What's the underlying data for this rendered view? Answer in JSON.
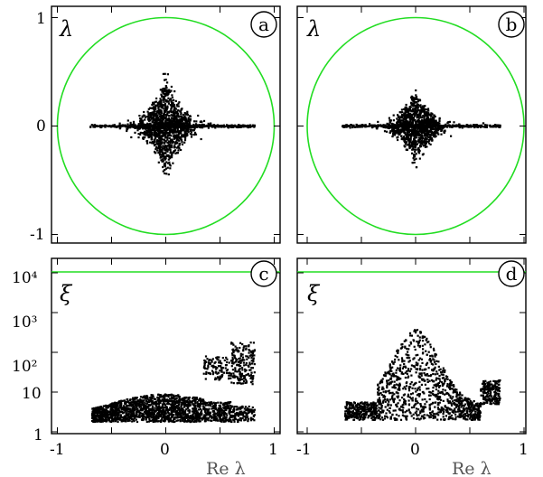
{
  "chart_data": [
    {
      "panel": "a",
      "type": "scatter",
      "ylabel": "λ",
      "xlim": [
        -1,
        1
      ],
      "ylim": [
        -1,
        1
      ],
      "yticks": [
        "1",
        "0",
        "-1"
      ],
      "overlay": {
        "type": "unit-circle",
        "color": "#22dd22"
      },
      "cloud": {
        "x_range": [
          -0.7,
          0.82
        ],
        "y_extent": 0.65,
        "count": 1700,
        "shape": "star"
      }
    },
    {
      "panel": "b",
      "type": "scatter",
      "ylabel": "λ",
      "xlim": [
        -1,
        1
      ],
      "ylim": [
        -1,
        1
      ],
      "overlay": {
        "type": "unit-circle",
        "color": "#22dd22"
      },
      "cloud": {
        "x_range": [
          -0.68,
          0.78
        ],
        "y_extent": 0.5,
        "count": 1700,
        "shape": "star"
      }
    },
    {
      "panel": "c",
      "type": "scatter",
      "ylabel": "ξ",
      "xlabel": "Re λ",
      "xlim": [
        -1,
        1
      ],
      "yscale": "log",
      "ylim": [
        1,
        12000
      ],
      "yticks": [
        "1",
        "10",
        "10²",
        "10³",
        "10⁴"
      ],
      "xticks": [
        "-1",
        "0",
        "1"
      ],
      "hline": {
        "y": 8000,
        "color": "#22dd22"
      },
      "cloud": {
        "x_range": [
          -0.68,
          0.82
        ],
        "y_range": [
          1.8,
          200
        ],
        "count": 2200
      }
    },
    {
      "panel": "d",
      "type": "scatter",
      "ylabel": "ξ",
      "xlabel": "Re λ",
      "xlim": [
        -1,
        1
      ],
      "yscale": "log",
      "ylim": [
        1,
        12000
      ],
      "xticks": [
        "-1",
        "0",
        "1"
      ],
      "hline": {
        "y": 8000,
        "color": "#22dd22"
      },
      "cloud": {
        "x_range": [
          -0.65,
          0.78
        ],
        "y_range": [
          2,
          140
        ],
        "count": 1500
      }
    }
  ],
  "badges": {
    "a": "a",
    "b": "b",
    "c": "c",
    "d": "d"
  },
  "ylabels": {
    "lambda": "λ",
    "xi": "ξ"
  },
  "xaxis_label": "Re λ"
}
